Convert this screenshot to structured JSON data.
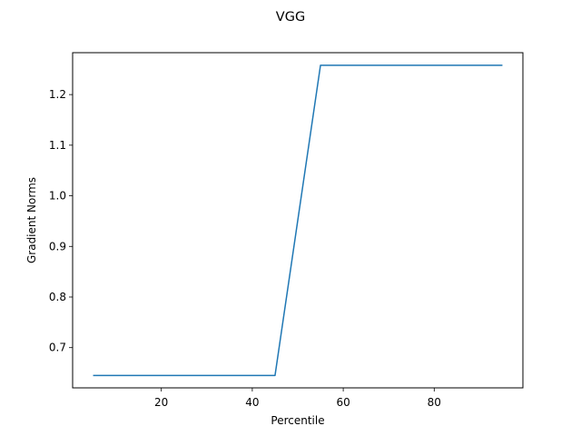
{
  "chart_data": {
    "type": "line",
    "title": "VGG",
    "xlabel": "Percentile",
    "ylabel": "Gradient Norms",
    "xlim": [
      0.5,
      99.5
    ],
    "ylim": [
      0.6205,
      1.2828
    ],
    "xticks": [
      20,
      40,
      60,
      80
    ],
    "yticks": [
      0.7,
      0.8,
      0.9,
      1.0,
      1.1,
      1.2
    ],
    "xtick_labels": [
      "20",
      "40",
      "60",
      "80"
    ],
    "ytick_labels": [
      "0.7",
      "0.8",
      "0.9",
      "1.0",
      "1.1",
      "1.2"
    ],
    "grid": false,
    "series": [
      {
        "color": "#1f77b4",
        "x": [
          5,
          15,
          25,
          35,
          45,
          55,
          65,
          75,
          85,
          95
        ],
        "y": [
          0.645,
          0.645,
          0.645,
          0.645,
          0.645,
          1.258,
          1.258,
          1.258,
          1.258,
          1.258
        ]
      }
    ]
  }
}
